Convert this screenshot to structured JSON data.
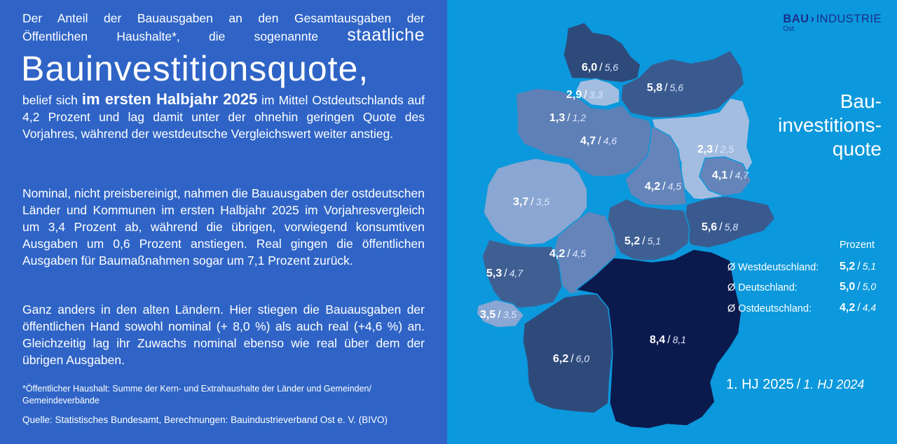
{
  "text": {
    "p1_a": "Der Anteil der Bauausgaben an den Gesamtausgaben der",
    "p1_b": "Öffentlichen Haushalte*,  die sogenannte ",
    "p1_b_big": "staatliche",
    "p1_huge": "Bauinvestitionsquote,",
    "p1_c": "belief sich ",
    "p1_c_bold": "im ersten Halbjahr 2025",
    "p1_d": " im Mittel Ostdeutschlands auf 4,2 Prozent und lag damit unter der ohnehin geringen Quote des Vorjahres, während der westdeutsche Vergleichswert weiter anstieg.",
    "p2": "Nominal, nicht preisbereinigt, nahmen die Bauausgaben der ostdeutschen Länder und Kommunen im ersten Halbjahr 2025 im Vorjahresvergleich um 3,4 Prozent ab, während die übrigen, vorwiegend konsumtiven Ausgaben um 0,6 Prozent anstiegen. Real gingen die öffentlichen Ausgaben für Baumaßnahmen sogar um 7,1 Prozent zurück.",
    "p3": "Ganz anders in den alten Ländern. Hier stiegen die Bauausgaben der öffentlichen Hand sowohl nominal (+ 8,0 %) als auch real (+4,6 %) an. Gleichzeitig lag ihr Zuwachs nominal ebenso wie real über dem der übrigen Ausgaben.",
    "footnote": "*Öffentlicher Haushalt: Summe der Kern- und Extrahaushalte der Länder und Gemeinden/ Gemeindeverbände",
    "source": "Quelle: Statistisches Bundesamt, Berechnungen: Bauindustrieverband Ost e. V. (BIVO)"
  },
  "logo": {
    "part1": "BAU",
    "part2": "INDUSTRIE",
    "sub": "Ost"
  },
  "map_title": "Bau-\ninvestitions-\nquote",
  "states": [
    {
      "name": "Schleswig-Holstein",
      "value": "6,0",
      "prev": "5,6",
      "fill": "#2e4a7a"
    },
    {
      "name": "Hamburg",
      "value": "2,9",
      "prev": "3,3",
      "fill": "#a3bde0"
    },
    {
      "name": "Mecklenburg-Vorpommern",
      "value": "5,8",
      "prev": "5,6",
      "fill": "#3a5a8f"
    },
    {
      "name": "Bremen",
      "value": "1,3",
      "prev": "1,2",
      "fill": "#b9cfec"
    },
    {
      "name": "Niedersachsen",
      "value": "4,7",
      "prev": "4,6",
      "fill": "#5f80b6"
    },
    {
      "name": "Brandenburg",
      "value": "2,3",
      "prev": "2,5",
      "fill": "#a3bde0"
    },
    {
      "name": "Berlin",
      "value": "4,1",
      "prev": "4,7",
      "fill": "#6585ba"
    },
    {
      "name": "Sachsen-Anhalt",
      "value": "4,2",
      "prev": "4,5",
      "fill": "#6585ba"
    },
    {
      "name": "Nordrhein-Westfalen",
      "value": "3,7",
      "prev": "3,5",
      "fill": "#8aa6d2"
    },
    {
      "name": "Sachsen",
      "value": "5,6",
      "prev": "5,8",
      "fill": "#3a5a8f"
    },
    {
      "name": "Thüringen",
      "value": "5,2",
      "prev": "5,1",
      "fill": "#3f5f93"
    },
    {
      "name": "Hessen",
      "value": "4,2",
      "prev": "4,5",
      "fill": "#6585ba"
    },
    {
      "name": "Rheinland-Pfalz",
      "value": "5,3",
      "prev": "4,7",
      "fill": "#3f5f93"
    },
    {
      "name": "Saarland",
      "value": "3,5",
      "prev": "3,5",
      "fill": "#8aa6d2"
    },
    {
      "name": "Baden-Württemberg",
      "value": "6,2",
      "prev": "6,0",
      "fill": "#2e4a7a"
    },
    {
      "name": "Bayern",
      "value": "8,4",
      "prev": "8,1",
      "fill": "#0b1a4d"
    }
  ],
  "averages": {
    "heading": "Prozent",
    "rows": [
      {
        "label": "Ø Westdeutschland:",
        "value": "5,2",
        "prev": "5,1"
      },
      {
        "label": "Ø Deutschland:",
        "value": "5,0",
        "prev": "5,0"
      },
      {
        "label": "Ø Ostdeutschland:",
        "value": "4,2",
        "prev": "4,4"
      }
    ]
  },
  "legend": {
    "current": "1. HJ 2025",
    "previous": "1. HJ 2024"
  },
  "colors": {
    "left_bg": "#2f64c6",
    "right_bg": "#0b98dc"
  }
}
